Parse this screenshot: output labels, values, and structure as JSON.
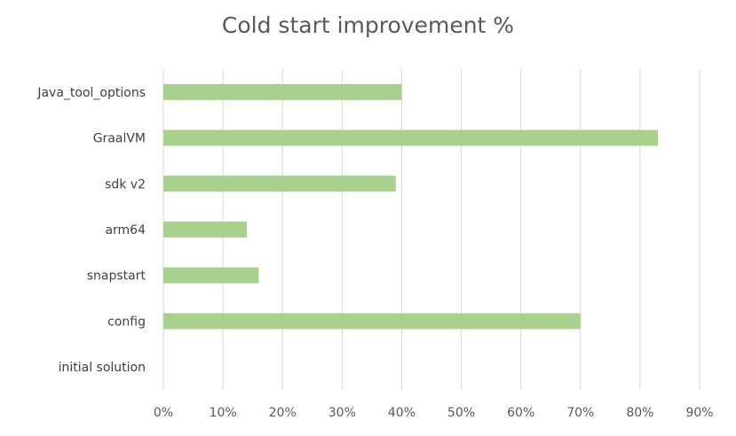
{
  "chart_data": {
    "type": "bar",
    "orientation": "horizontal",
    "title": "Cold start improvement %",
    "categories": [
      "Java_tool_options",
      "GraalVM",
      "sdk v2",
      "arm64",
      "snapstart",
      "config",
      "initial solution"
    ],
    "values": [
      40,
      83,
      39,
      14,
      16,
      70,
      0
    ],
    "xlim": [
      0,
      90
    ],
    "x_ticks": [
      "0%",
      "10%",
      "20%",
      "30%",
      "40%",
      "50%",
      "60%",
      "70%",
      "80%",
      "90%"
    ],
    "grid": "vertical",
    "legend": "none",
    "bar_color": "#a9d18e",
    "grid_color": "#d9d9d9"
  }
}
